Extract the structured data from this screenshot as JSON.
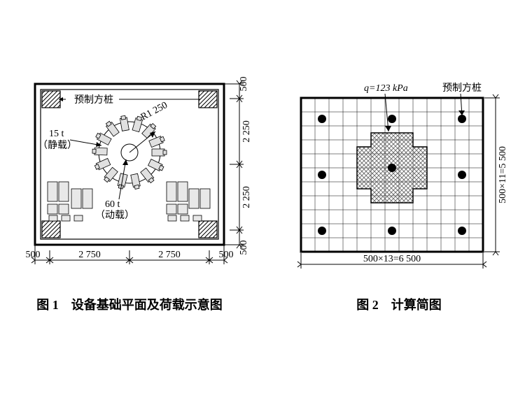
{
  "fig1": {
    "caption": "图 1　设备基础平面及荷载示意图",
    "labels": {
      "pile": "预制方桩",
      "static_load_val": "15 t",
      "static_load_txt": "（静载）",
      "dyn_load_val": "60 t",
      "dyn_load_txt": "（动载）",
      "radius": "R1 250"
    },
    "dims_bottom": [
      "500",
      "2 750",
      "2 750",
      "500"
    ],
    "dims_right": [
      "500",
      "2 250",
      "2 250",
      "500"
    ],
    "plan": {
      "w_mm": 6500,
      "h_mm": 5500
    },
    "colors": {
      "stroke": "#000000",
      "hatch": "#000000",
      "bg": "#ffffff",
      "machine_fill": "#d0d0d0"
    }
  },
  "fig2": {
    "caption": "图 2　计算简图",
    "labels": {
      "load": "q=123 kPa",
      "pile": "预制方桩"
    },
    "dims": {
      "bottom": "500×13=6 500",
      "right": "500×11=5 500"
    },
    "grid": {
      "cols": 13,
      "rows": 11
    },
    "piles": {
      "cols": [
        1,
        6,
        12
      ],
      "rows": [
        1,
        5,
        10
      ]
    },
    "load_shape_cells": {
      "comment": "cross-shaped area centered near col 6-7 row 4-6",
      "rects": [
        {
          "c0": 5,
          "r0": 3,
          "c1": 9,
          "r1": 7
        },
        {
          "c0": 4,
          "r0": 4,
          "c1": 10,
          "r1": 6
        }
      ]
    },
    "colors": {
      "stroke": "#000000",
      "grid": "#000000",
      "hatch": "#888888",
      "pile": "#000000",
      "bg": "#ffffff"
    }
  },
  "style": {
    "font_cn": "SimSun",
    "font_num": "Times New Roman",
    "caption_fontsize_pt": 14,
    "label_fontsize_pt": 11
  }
}
